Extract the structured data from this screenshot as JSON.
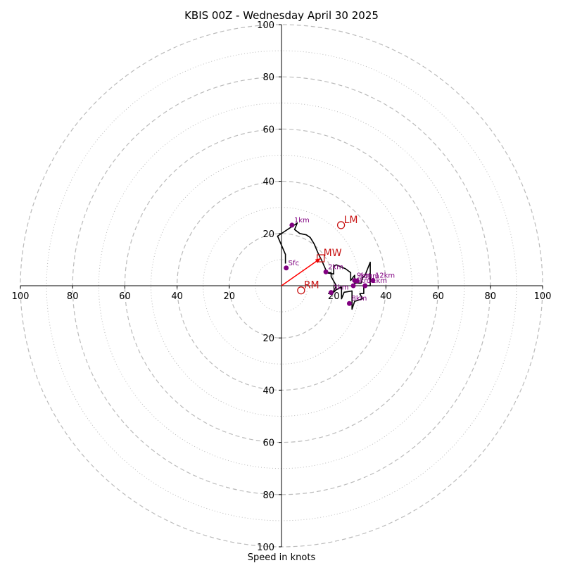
{
  "chart_data": {
    "type": "hodograph",
    "title": "KBIS 00Z - Wednesday April 30 2025",
    "xlabel": "Speed in knots",
    "ring_max": 100,
    "major_rings": [
      20,
      40,
      60,
      80,
      100
    ],
    "minor_rings": [
      10,
      30,
      50,
      70,
      90
    ],
    "ticks": {
      "left": [
        "100",
        "80",
        "60",
        "40",
        "20"
      ],
      "right": [
        "20",
        "40",
        "60",
        "80",
        "100"
      ],
      "top": [
        "100",
        "80",
        "60",
        "40",
        "20"
      ],
      "bottom": [
        "20",
        "40",
        "60",
        "80",
        "100"
      ]
    },
    "trace": [
      [
        1.5,
        8.5
      ],
      [
        1.5,
        12
      ],
      [
        -1.5,
        19
      ],
      [
        3,
        22
      ],
      [
        6,
        24
      ],
      [
        5,
        21.5
      ],
      [
        7,
        20
      ],
      [
        9.5,
        19.5
      ],
      [
        11,
        18.5
      ],
      [
        12.5,
        16
      ],
      [
        14,
        12.5
      ],
      [
        15.5,
        9.5
      ],
      [
        17,
        6
      ],
      [
        17,
        5
      ],
      [
        20,
        4.5
      ],
      [
        20,
        7.5
      ],
      [
        21,
        8
      ],
      [
        24.5,
        6.5
      ],
      [
        26.5,
        5
      ],
      [
        26.5,
        2
      ],
      [
        28,
        4
      ],
      [
        28,
        1
      ],
      [
        30.5,
        1
      ],
      [
        31,
        3
      ],
      [
        32,
        4
      ],
      [
        34,
        9
      ],
      [
        34,
        4
      ],
      [
        34,
        0
      ],
      [
        31.5,
        0
      ],
      [
        31.5,
        -3
      ],
      [
        30,
        -3
      ],
      [
        31,
        -5
      ],
      [
        28,
        -6
      ],
      [
        27,
        -9
      ],
      [
        27,
        -2
      ],
      [
        24,
        -2.5
      ],
      [
        23,
        -5
      ],
      [
        23,
        -0.5
      ],
      [
        21,
        -1.5
      ],
      [
        20,
        -2.5
      ],
      [
        18,
        -3
      ],
      [
        20,
        -2
      ],
      [
        21,
        0
      ],
      [
        19,
        3.5
      ],
      [
        19,
        5
      ],
      [
        17,
        5
      ]
    ],
    "height_markers": [
      {
        "label": "Sfc",
        "u": 1.8,
        "v": 6.8
      },
      {
        "label": "1km",
        "u": 4,
        "v": 23.2
      },
      {
        "label": "2km",
        "u": 17,
        "v": 5.3
      },
      {
        "label": "3km",
        "u": 19,
        "v": -2.6
      },
      {
        "label": "6km",
        "u": 27.5,
        "v": 0
      },
      {
        "label": "8km",
        "u": 26,
        "v": -6.8
      },
      {
        "label": "9km",
        "u": 28,
        "v": 2
      },
      {
        "label": "10km",
        "u": 29,
        "v": 1.8
      },
      {
        "label": "11km",
        "u": 32,
        "v": 0
      },
      {
        "label": "12km",
        "u": 35,
        "v": 2
      }
    ],
    "storm_motion": [
      {
        "label": "LM",
        "u": 22.8,
        "v": 23.2,
        "marker": "circle"
      },
      {
        "label": "MW",
        "u": 15,
        "v": 10.5,
        "marker": "square"
      },
      {
        "label": "RM",
        "u": 7.5,
        "v": -1.8,
        "marker": "circle"
      }
    ],
    "colors": {
      "trace": "#000000",
      "markers": "#800080",
      "storm_motion": "#c81414",
      "mean_wind_vector": "#ff0000",
      "rings": "#bbbbbb"
    }
  }
}
